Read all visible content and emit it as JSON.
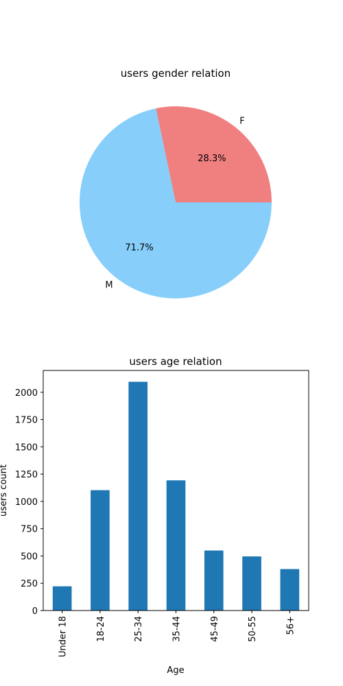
{
  "chart_data": [
    {
      "type": "pie",
      "title": "users gender relation",
      "labels": [
        "F",
        "M"
      ],
      "values": [
        28.3,
        71.7
      ],
      "percent_labels": [
        "28.3%",
        "71.7%"
      ],
      "colors": [
        "#f08080",
        "#87cefa"
      ]
    },
    {
      "type": "bar",
      "title": "users age relation",
      "xlabel": "Age",
      "ylabel": "users count",
      "categories": [
        "Under 18",
        "18-24",
        "25-34",
        "35-44",
        "45-49",
        "50-55",
        "56+"
      ],
      "values": [
        222,
        1103,
        2096,
        1193,
        550,
        496,
        380
      ],
      "ylim": [
        0,
        2200
      ],
      "yticks": [
        0,
        250,
        500,
        750,
        1000,
        1250,
        1500,
        1750,
        2000
      ],
      "ytick_labels": [
        "0",
        "250",
        "500",
        "750",
        "1000",
        "1250",
        "1500",
        "1750",
        "2000"
      ],
      "color": "#1f77b4",
      "grid": false
    }
  ]
}
